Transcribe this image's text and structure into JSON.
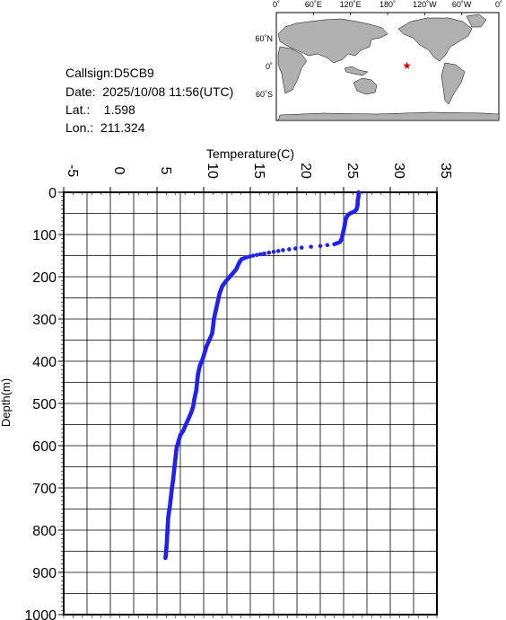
{
  "info": {
    "callsign": "Callsign:D5CB9",
    "date": "Date:  2025/10/08 11:56(UTC)",
    "lat": "Lat.:    1.598",
    "lon": "Lon.:  211.324"
  },
  "map": {
    "top_labels": [
      "0˚",
      "60˚E",
      "120˚E",
      "180˚",
      "120˚W",
      "60˚W",
      "0˚"
    ],
    "left_labels": [
      "60˚N",
      "0˚",
      "60˚S"
    ],
    "ocean_color": "#ffffff",
    "land_color": "#b0b0b0",
    "marker": {
      "lon": 211.324,
      "lat": 1.598,
      "symbol": "star",
      "color": "#e00000"
    }
  },
  "chart_data": {
    "type": "scatter",
    "xlabel": "Temperature(C)",
    "ylabel": "Depth(m)",
    "x_ticks": [
      "-5",
      "0",
      "5",
      "10",
      "15",
      "20",
      "25",
      "30",
      "35"
    ],
    "y_ticks": [
      "0",
      "100",
      "200",
      "300",
      "400",
      "500",
      "600",
      "700",
      "800",
      "900",
      "1000"
    ],
    "xlim": [
      -5,
      35
    ],
    "ylim": [
      0,
      1000
    ],
    "y_inverted": true,
    "x_axis_position": "top",
    "grid": true,
    "series_color": "#2222ee",
    "profile": [
      [
        26.6,
        0
      ],
      [
        26.6,
        10
      ],
      [
        26.5,
        20
      ],
      [
        26.5,
        30
      ],
      [
        26.4,
        40
      ],
      [
        26.2,
        45
      ],
      [
        25.7,
        50
      ],
      [
        25.4,
        55
      ],
      [
        25.2,
        65
      ],
      [
        25.1,
        80
      ],
      [
        24.9,
        100
      ],
      [
        24.8,
        110
      ],
      [
        24.6,
        118
      ],
      [
        24.0,
        123
      ],
      [
        22.5,
        127
      ],
      [
        20.5,
        131
      ],
      [
        18.5,
        137
      ],
      [
        16.5,
        145
      ],
      [
        15.3,
        150
      ],
      [
        14.6,
        154
      ],
      [
        14.1,
        158
      ],
      [
        13.9,
        163
      ],
      [
        13.7,
        172
      ],
      [
        13.5,
        182
      ],
      [
        13.2,
        190
      ],
      [
        12.8,
        200
      ],
      [
        12.4,
        210
      ],
      [
        12.0,
        222
      ],
      [
        11.7,
        240
      ],
      [
        11.5,
        260
      ],
      [
        11.3,
        280
      ],
      [
        11.1,
        300
      ],
      [
        11.0,
        320
      ],
      [
        10.9,
        335
      ],
      [
        10.6,
        350
      ],
      [
        10.3,
        365
      ],
      [
        10.1,
        380
      ],
      [
        9.9,
        395
      ],
      [
        9.6,
        410
      ],
      [
        9.4,
        430
      ],
      [
        9.3,
        450
      ],
      [
        9.2,
        470
      ],
      [
        9.0,
        490
      ],
      [
        8.9,
        505
      ],
      [
        8.7,
        520
      ],
      [
        8.4,
        535
      ],
      [
        8.1,
        550
      ],
      [
        7.8,
        565
      ],
      [
        7.5,
        575
      ],
      [
        7.3,
        590
      ],
      [
        7.1,
        605
      ],
      [
        7.0,
        625
      ],
      [
        6.9,
        645
      ],
      [
        6.8,
        665
      ],
      [
        6.7,
        685
      ],
      [
        6.6,
        700
      ],
      [
        6.5,
        720
      ],
      [
        6.4,
        740
      ],
      [
        6.3,
        755
      ],
      [
        6.2,
        770
      ],
      [
        6.15,
        790
      ],
      [
        6.1,
        810
      ],
      [
        6.05,
        830
      ],
      [
        6.0,
        845
      ],
      [
        5.95,
        858
      ],
      [
        5.9,
        866
      ]
    ]
  }
}
